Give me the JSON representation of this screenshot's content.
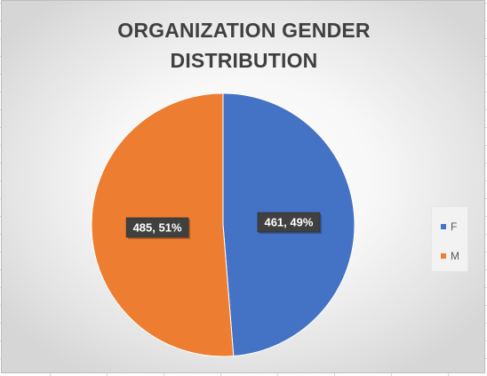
{
  "chart_data": {
    "type": "pie",
    "title": "ORGANIZATION GENDER DISTRIBUTION",
    "title_lines": [
      "ORGANIZATION GENDER",
      "DISTRIBUTION"
    ],
    "categories": [
      "F",
      "M"
    ],
    "values": [
      461,
      485
    ],
    "data_labels": [
      "461, 49%",
      "485, 51%"
    ],
    "colors": [
      "#4472c4",
      "#ed7d31"
    ],
    "legend_placement": "right",
    "start_angle": "top, clockwise"
  }
}
